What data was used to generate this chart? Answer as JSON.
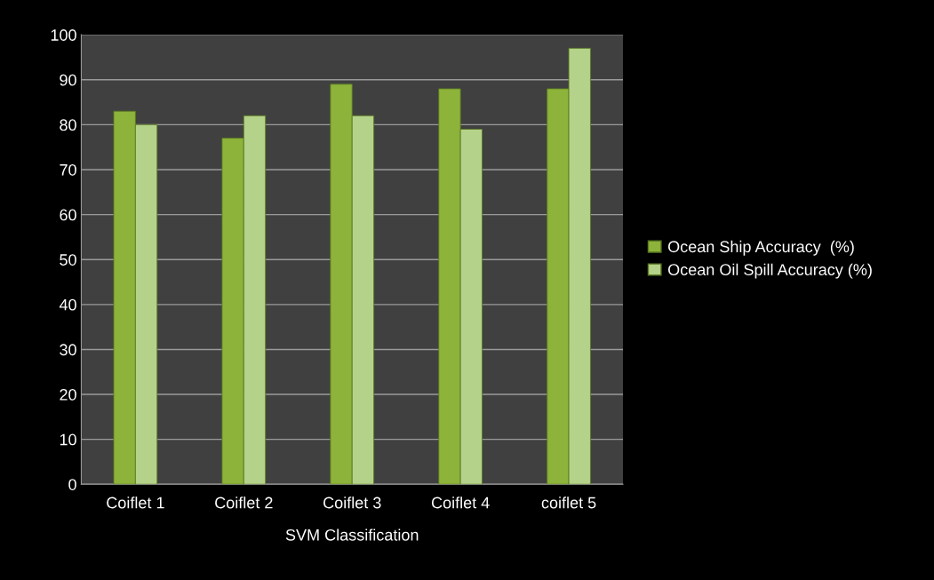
{
  "chart_data": {
    "type": "bar",
    "xlabel": "SVM Classification",
    "categories": [
      "Coiflet 1",
      "Coiflet 2",
      "Coiflet 3",
      "Coiflet 4",
      "coiflet 5"
    ],
    "series": [
      {
        "name": "Ocean Ship Accuracy  (%)",
        "color": "#8db33a",
        "values": [
          83,
          77,
          89,
          88,
          88
        ]
      },
      {
        "name": "Ocean Oil Spill Accuracy (%)",
        "color": "#b5d28a",
        "values": [
          80,
          82,
          82,
          79,
          97
        ]
      }
    ],
    "ylim": [
      0,
      100
    ],
    "yticks": [
      0,
      10,
      20,
      30,
      40,
      50,
      60,
      70,
      80,
      90,
      100
    ],
    "grid": "y",
    "legend": "right"
  }
}
